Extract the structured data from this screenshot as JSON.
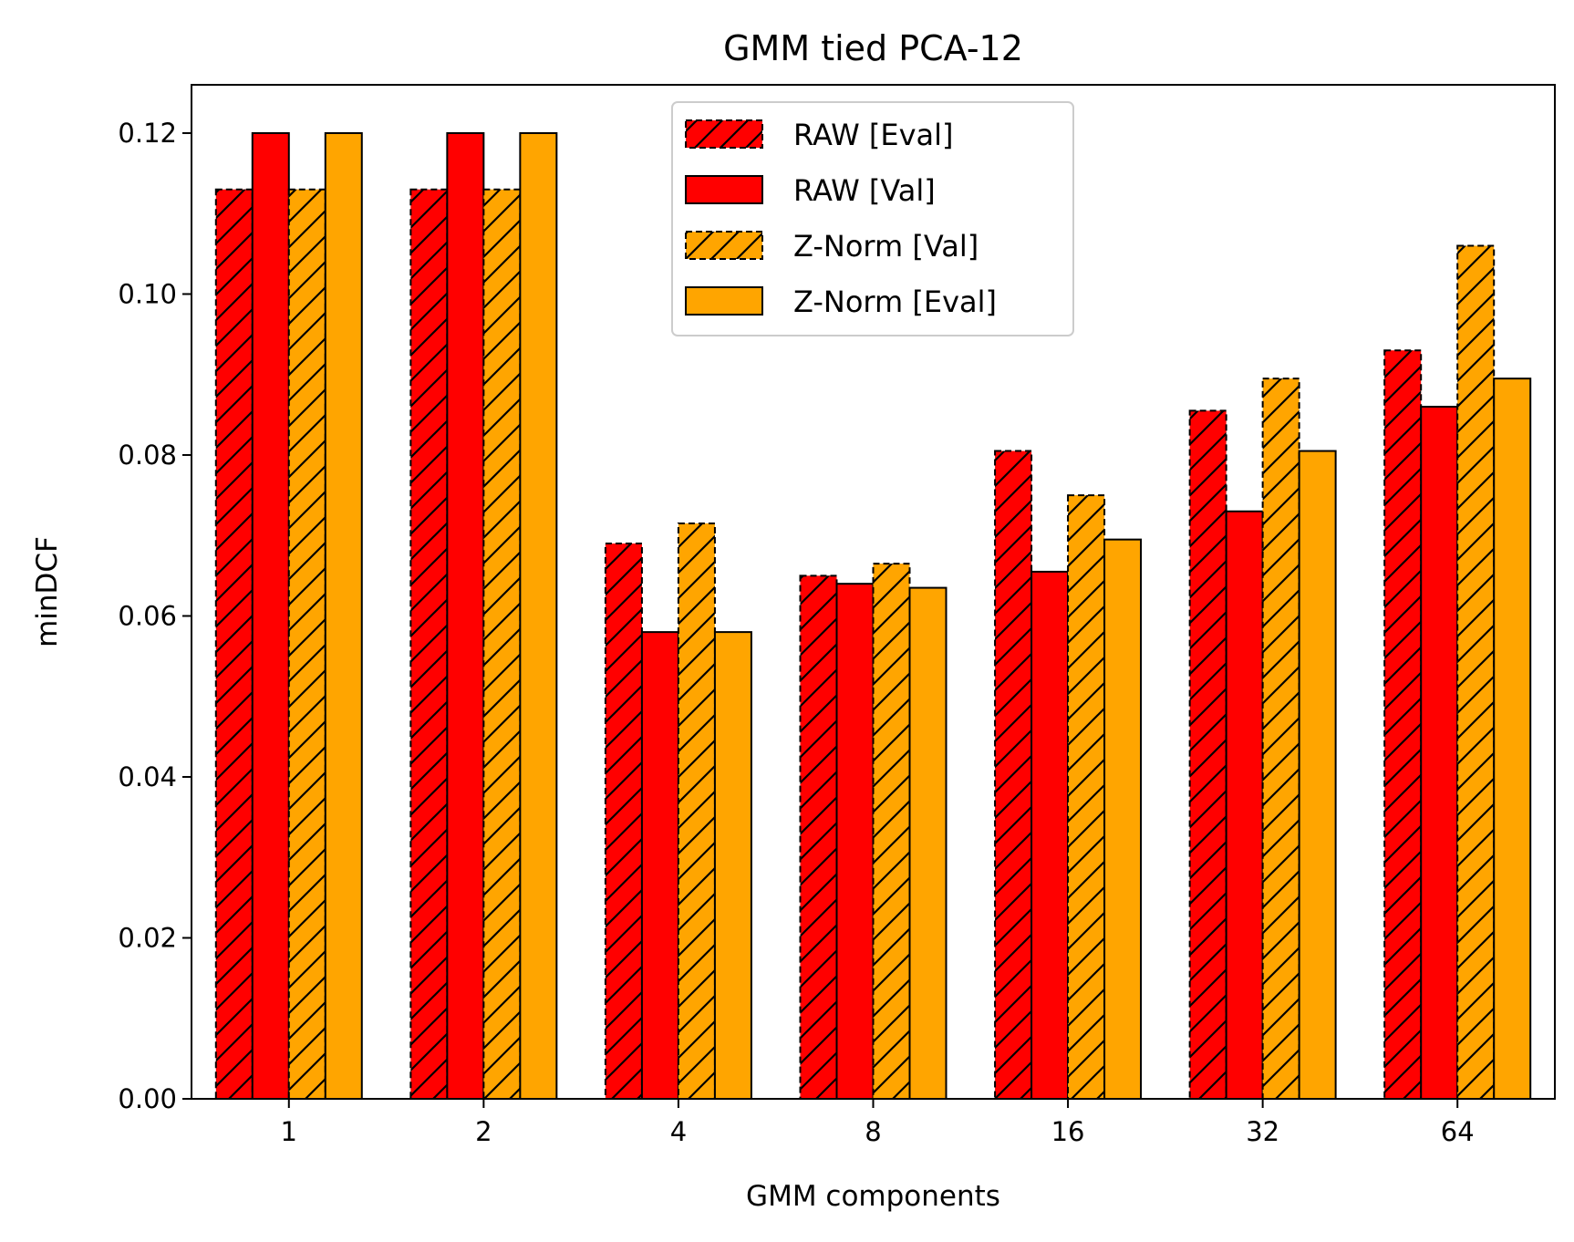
{
  "chart_data": {
    "type": "bar",
    "title": "GMM tied PCA-12",
    "xlabel": "GMM components",
    "ylabel": "minDCF",
    "categories": [
      "1",
      "2",
      "4",
      "8",
      "16",
      "32",
      "64"
    ],
    "ylim": [
      0,
      0.126
    ],
    "yticks": [
      "0.00",
      "0.02",
      "0.04",
      "0.06",
      "0.08",
      "0.10",
      "0.12"
    ],
    "grid": false,
    "legend_position": "top-center",
    "series": [
      {
        "name": "RAW [Eval]",
        "color": "#ff0000",
        "hatch": true,
        "dashed_edge": true,
        "values": [
          0.113,
          0.113,
          0.069,
          0.065,
          0.0805,
          0.0855,
          0.093
        ]
      },
      {
        "name": "RAW [Val]",
        "color": "#ff0000",
        "hatch": false,
        "dashed_edge": false,
        "values": [
          0.12,
          0.12,
          0.058,
          0.064,
          0.0655,
          0.073,
          0.086
        ]
      },
      {
        "name": "Z-Norm [Val]",
        "color": "#ffa500",
        "hatch": true,
        "dashed_edge": true,
        "values": [
          0.113,
          0.113,
          0.0715,
          0.0665,
          0.075,
          0.0895,
          0.106
        ]
      },
      {
        "name": "Z-Norm [Eval]",
        "color": "#ffa500",
        "hatch": false,
        "dashed_edge": false,
        "values": [
          0.12,
          0.12,
          0.058,
          0.0635,
          0.0695,
          0.0805,
          0.0895
        ]
      }
    ]
  }
}
